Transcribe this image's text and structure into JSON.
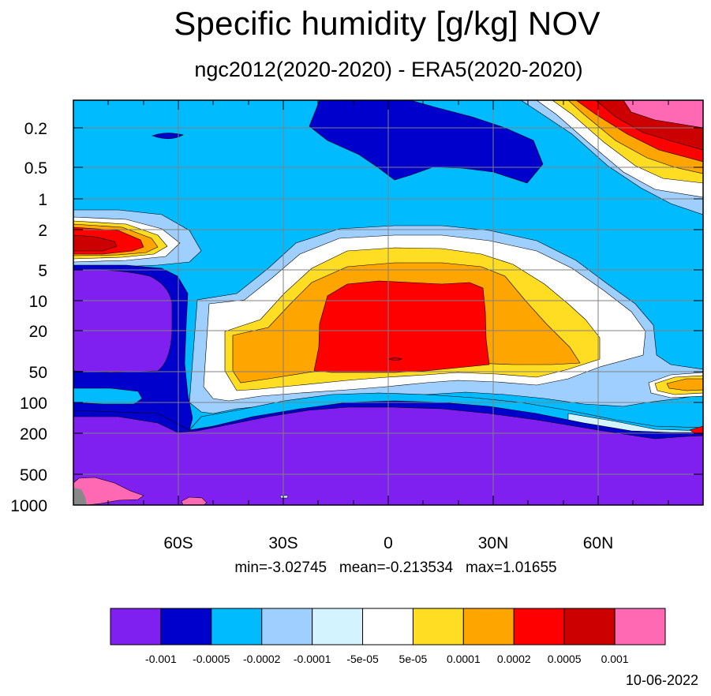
{
  "title": "Specific humidity [g/kg] NOV",
  "subtitle": "ngc2012(2020-2020) - ERA5(2020-2020)",
  "stats": "min=-3.02745   mean=-0.213534   max=1.01655",
  "date": "10-06-2022",
  "colors": {
    "c1": "#8020f0",
    "c2": "#0000cc",
    "c3": "#00bcff",
    "c4": "#9fcfff",
    "c5": "#d2f3ff",
    "c6": "#ffffff",
    "c7": "#ffdd22",
    "c8": "#ffa500",
    "c9": "#ff0000",
    "c10": "#cc0000",
    "c11": "#ff69b4",
    "land": "#888888"
  },
  "chart_data": {
    "type": "contour",
    "title": "Specific humidity [g/kg] NOV",
    "subtitle": "ngc2012(2020-2020) - ERA5(2020-2020)",
    "xlabel": "",
    "ylabel": "",
    "x_ticks": [
      "60S",
      "30S",
      "0",
      "30N",
      "60N"
    ],
    "x_tick_values": [
      -60,
      -30,
      0,
      30,
      60
    ],
    "xlim": [
      -90,
      90
    ],
    "y_ticks": [
      "0.2",
      "0.5",
      "1",
      "2",
      "5",
      "10",
      "20",
      "50",
      "100",
      "200",
      "500",
      "1000"
    ],
    "y_tick_values": [
      0.2,
      0.5,
      1,
      2,
      5,
      10,
      20,
      50,
      100,
      200,
      500,
      1000
    ],
    "ylim": [
      0.1,
      1000
    ],
    "y_scale": "log",
    "y_reversed": true,
    "grid": true,
    "colorbar": {
      "levels": [
        "-0.001",
        "-0.0005",
        "-0.0002",
        "-0.0001",
        "-5e-05",
        "5e-05",
        "0.0001",
        "0.0002",
        "0.0005",
        "0.001"
      ],
      "colors": [
        "#8020f0",
        "#0000cc",
        "#00bcff",
        "#9fcfff",
        "#d2f3ff",
        "#ffffff",
        "#ffdd22",
        "#ffa500",
        "#ff0000",
        "#cc0000",
        "#ff69b4"
      ]
    },
    "stats": {
      "min": -3.02745,
      "mean": -0.213534,
      "max": 1.01655
    }
  }
}
